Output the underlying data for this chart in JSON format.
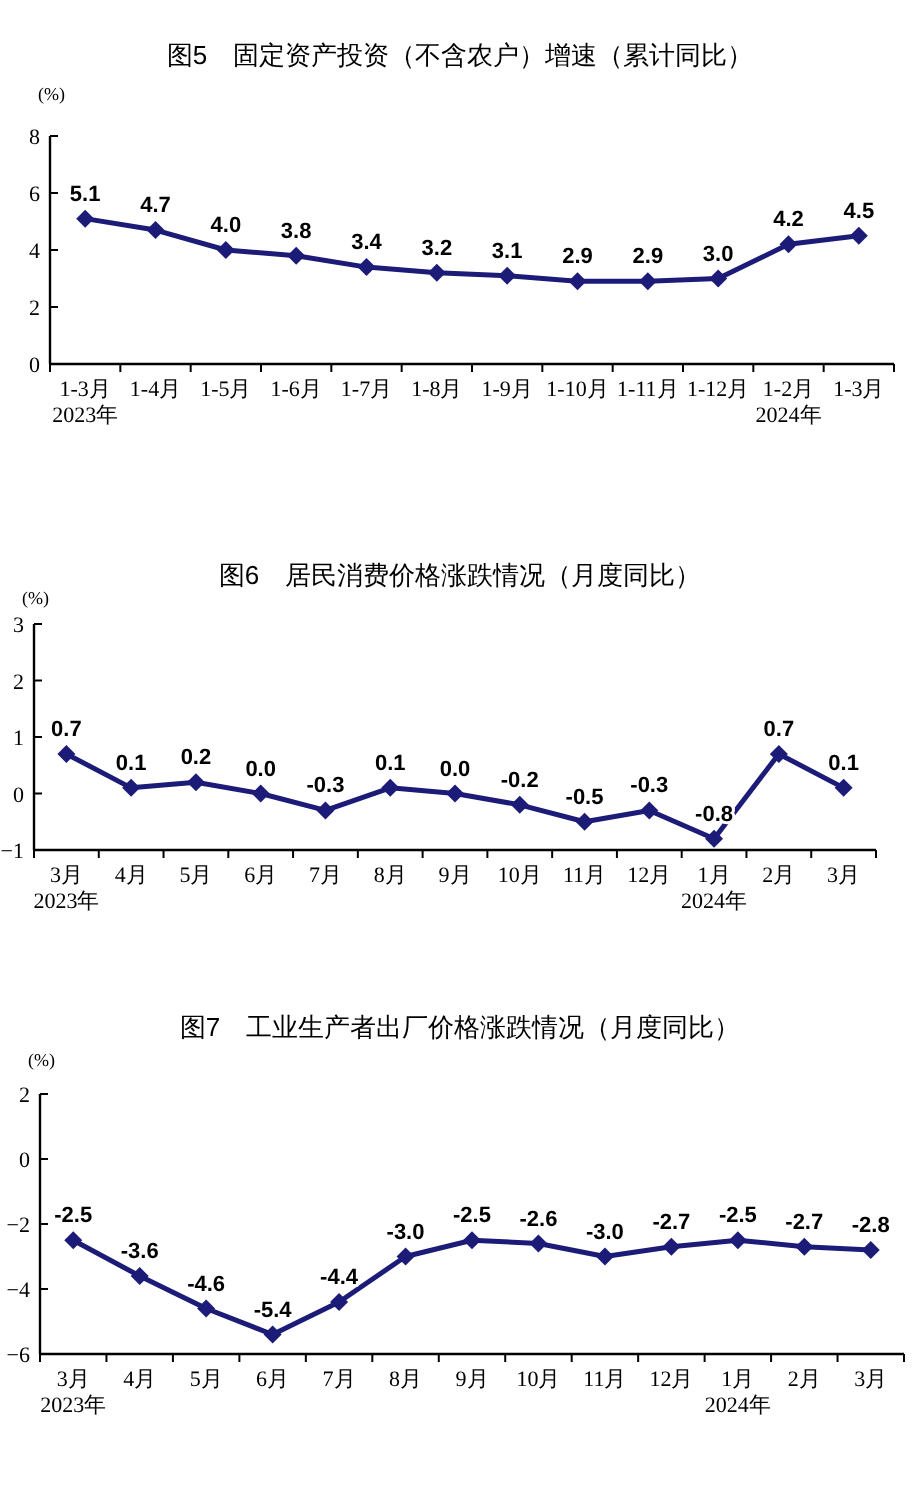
{
  "chart_data": [
    {
      "type": "line",
      "title": "图5　固定资产投资（不含农户）增速（累计同比）",
      "ylabel": "(%)",
      "categories": [
        "1-3月\n2023年",
        "1-4月",
        "1-5月",
        "1-6月",
        "1-7月",
        "1-8月",
        "1-9月",
        "1-10月",
        "1-11月",
        "1-12月",
        "1-2月\n2024年",
        "1-3月"
      ],
      "series": [
        {
          "color": "#1c1c78",
          "values": [
            5.1,
            4.7,
            4.0,
            3.8,
            3.4,
            3.2,
            3.1,
            2.9,
            2.9,
            3.0,
            4.2,
            4.5
          ],
          "value_labels": [
            "5.1",
            "4.7",
            "4.0",
            "3.8",
            "3.4",
            "3.2",
            "3.1",
            "2.9",
            "2.9",
            "3.0",
            "4.2",
            "4.5"
          ]
        }
      ],
      "ylim": [
        0,
        8
      ],
      "yticks": [
        0,
        2,
        4,
        6,
        8
      ],
      "marker": "diamond"
    },
    {
      "type": "line",
      "title": "图6　居民消费价格涨跌情况（月度同比）",
      "ylabel": "(%)",
      "categories": [
        "3月\n2023年",
        "4月",
        "5月",
        "6月",
        "7月",
        "8月",
        "9月",
        "10月",
        "11月",
        "12月",
        "1月\n2024年",
        "2月",
        "3月"
      ],
      "series": [
        {
          "color": "#1c1c78",
          "values": [
            0.7,
            0.1,
            0.2,
            0.0,
            -0.3,
            0.1,
            0.0,
            -0.2,
            -0.5,
            -0.3,
            -0.8,
            0.7,
            0.1
          ],
          "value_labels": [
            "0.7",
            "0.1",
            "0.2",
            "0.0",
            "-0.3",
            "0.1",
            "0.0",
            "-0.2",
            "-0.5",
            "-0.3",
            "-0.8",
            "0.7",
            "0.1"
          ]
        }
      ],
      "ylim": [
        -1,
        3
      ],
      "yticks": [
        -1,
        0,
        1,
        2,
        3
      ],
      "marker": "diamond"
    },
    {
      "type": "line",
      "title": "图7　工业生产者出厂价格涨跌情况（月度同比）",
      "ylabel": "(%)",
      "categories": [
        "3月\n2023年",
        "4月",
        "5月",
        "6月",
        "7月",
        "8月",
        "9月",
        "10月",
        "11月",
        "12月",
        "1月\n2024年",
        "2月",
        "3月"
      ],
      "series": [
        {
          "color": "#1c1c78",
          "values": [
            -2.5,
            -3.6,
            -4.6,
            -5.4,
            -4.4,
            -3.0,
            -2.5,
            -2.6,
            -3.0,
            -2.7,
            -2.5,
            -2.7,
            -2.8
          ],
          "value_labels": [
            "-2.5",
            "-3.6",
            "-4.6",
            "-5.4",
            "-4.4",
            "-3.0",
            "-2.5",
            "-2.6",
            "-3.0",
            "-2.7",
            "-2.5",
            "-2.7",
            "-2.8"
          ]
        }
      ],
      "ylim": [
        -6,
        2
      ],
      "yticks": [
        -6,
        -4,
        -2,
        0,
        2
      ],
      "marker": "diamond"
    }
  ]
}
